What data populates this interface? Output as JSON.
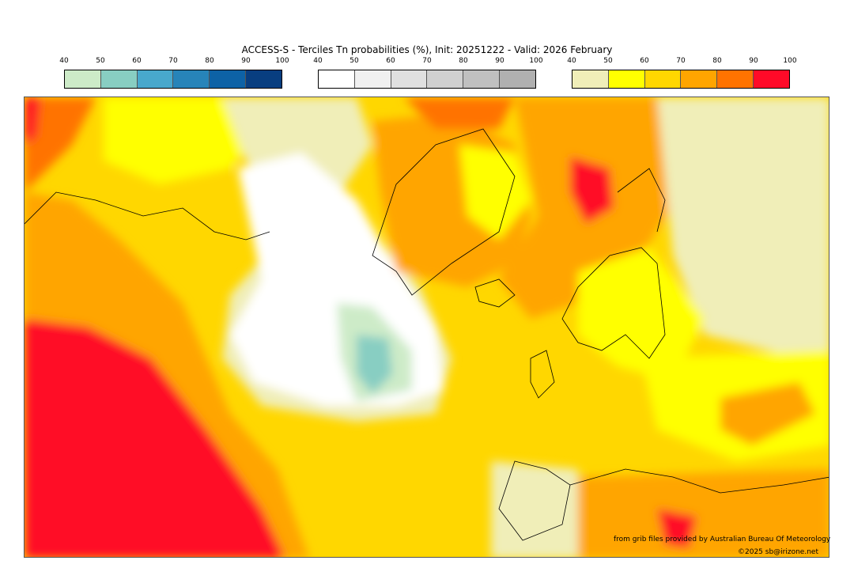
{
  "title": "ACCESS-S - Terciles Tn probabilities (%), Init: 20251222 - Valid: 2026 February",
  "legends": [
    {
      "name": "below-normal",
      "ticks": [
        "40",
        "50",
        "60",
        "70",
        "80",
        "90",
        "100"
      ],
      "colors": [
        "#CDEBC8",
        "#88CEC2",
        "#48A8CC",
        "#2784B9",
        "#0D62A6",
        "#083E80"
      ]
    },
    {
      "name": "near-normal",
      "ticks": [
        "40",
        "50",
        "60",
        "70",
        "80",
        "90",
        "100"
      ],
      "colors": [
        "#FFFFFF",
        "#F0F0F0",
        "#E0E0E0",
        "#D0D0D0",
        "#C0C0C0",
        "#B0B0B0"
      ]
    },
    {
      "name": "above-normal",
      "ticks": [
        "40",
        "50",
        "60",
        "70",
        "80",
        "90",
        "100"
      ],
      "colors": [
        "#F0EEB8",
        "#FFFF00",
        "#FFD700",
        "#FFA500",
        "#FF7300",
        "#FF0A28"
      ]
    }
  ],
  "credits": {
    "source": "from grib files provided by Australian Bureau Of Meteorology",
    "copyright": "©2025 sb@irizone.net"
  }
}
